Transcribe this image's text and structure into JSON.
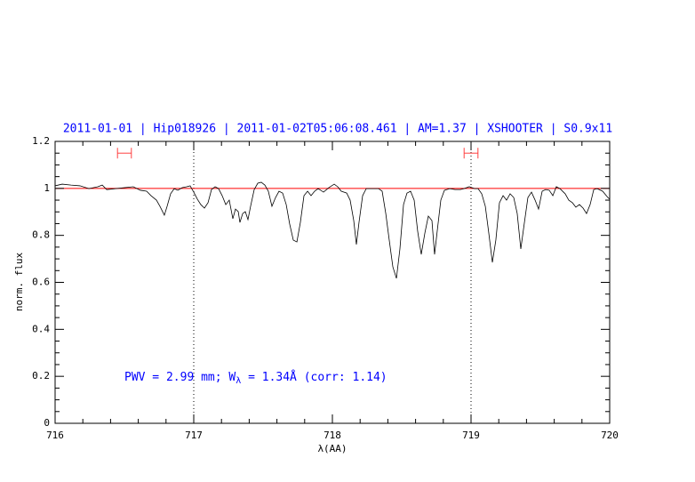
{
  "chart_data": {
    "type": "line",
    "title": "2011-01-01 | Hip018926 | 2011-01-02T05:06:08.461 | AM=1.37 | XSHOOTER | S0.9x11",
    "xlabel": "λ(AA)",
    "ylabel": "norm. flux",
    "annotation": {
      "prefix": "PWV = 2.99 mm; W",
      "subscript": "λ",
      "suffix": " = 1.34Å (corr: 1.14)"
    },
    "xlim": [
      716,
      720
    ],
    "ylim": [
      0,
      1.2
    ],
    "xticks": [
      716,
      717,
      718,
      719,
      720
    ],
    "yticks": [
      0,
      0.2,
      0.4,
      0.6,
      0.8,
      1,
      1.2
    ],
    "xminorticks": [
      716.2,
      716.4,
      716.6,
      716.8,
      717.2,
      717.4,
      717.6,
      717.8,
      718.2,
      718.4,
      718.6,
      718.8,
      719.2,
      719.4,
      719.6,
      719.8
    ],
    "yminorticks": [
      0.05,
      0.1,
      0.15,
      0.25,
      0.3,
      0.35,
      0.45,
      0.5,
      0.55,
      0.65,
      0.7,
      0.75,
      0.85,
      0.9,
      0.95,
      1.05,
      1.1,
      1.15
    ],
    "markers": [
      717,
      719
    ],
    "continuum": 1,
    "continuum_color": "#ff0000",
    "windows": [
      [
        716.45,
        716.55
      ],
      [
        718.95,
        719.05
      ]
    ],
    "window_level": 1.15,
    "window_color": "#ff4040",
    "x": [
      716.0,
      716.051,
      716.115,
      716.179,
      716.244,
      716.308,
      716.34,
      716.372,
      716.436,
      716.5,
      716.564,
      716.615,
      716.66,
      716.692,
      716.731,
      716.756,
      716.788,
      716.808,
      716.833,
      716.859,
      716.885,
      716.917,
      716.949,
      716.974,
      717.0,
      717.026,
      717.051,
      717.077,
      717.103,
      717.128,
      717.154,
      717.179,
      717.205,
      717.231,
      717.256,
      717.282,
      717.301,
      717.321,
      717.333,
      717.353,
      717.372,
      717.391,
      717.41,
      717.436,
      717.462,
      717.487,
      717.513,
      717.538,
      717.564,
      717.59,
      717.615,
      717.641,
      717.667,
      717.692,
      717.718,
      717.744,
      717.769,
      717.795,
      717.821,
      717.846,
      717.872,
      717.897,
      717.936,
      717.974,
      718.013,
      718.038,
      718.064,
      718.103,
      718.128,
      718.154,
      718.173,
      718.192,
      718.218,
      718.244,
      718.295,
      718.333,
      718.359,
      718.385,
      718.41,
      718.436,
      718.462,
      718.487,
      718.513,
      718.538,
      718.564,
      718.59,
      718.615,
      718.641,
      718.667,
      718.692,
      718.718,
      718.737,
      718.756,
      718.782,
      718.808,
      718.846,
      718.885,
      718.923,
      718.949,
      718.987,
      719.026,
      719.051,
      719.077,
      719.103,
      719.128,
      719.154,
      719.179,
      719.205,
      719.231,
      719.256,
      719.282,
      719.308,
      719.333,
      719.359,
      719.385,
      719.41,
      719.436,
      719.462,
      719.487,
      719.513,
      719.538,
      719.564,
      719.59,
      719.615,
      719.641,
      719.679,
      719.705,
      719.731,
      719.756,
      719.782,
      719.808,
      719.833,
      719.859,
      719.885,
      719.91,
      719.949,
      719.987,
      720.0
    ],
    "series": [
      {
        "color": "#000000",
        "values": [
          1.011,
          1.018,
          1.014,
          1.011,
          0.999,
          1.007,
          1.014,
          0.995,
          0.999,
          1.003,
          1.007,
          0.992,
          0.988,
          0.969,
          0.95,
          0.924,
          0.886,
          0.924,
          0.977,
          0.999,
          0.992,
          1.003,
          1.007,
          1.011,
          0.984,
          0.954,
          0.931,
          0.916,
          0.939,
          0.995,
          1.007,
          0.999,
          0.969,
          0.931,
          0.95,
          0.871,
          0.912,
          0.901,
          0.855,
          0.893,
          0.901,
          0.867,
          0.924,
          0.995,
          1.022,
          1.026,
          1.014,
          0.988,
          0.924,
          0.961,
          0.988,
          0.98,
          0.931,
          0.848,
          0.78,
          0.772,
          0.855,
          0.969,
          0.988,
          0.969,
          0.988,
          0.999,
          0.984,
          1.003,
          1.018,
          1.007,
          0.988,
          0.98,
          0.95,
          0.863,
          0.761,
          0.855,
          0.969,
          0.999,
          0.999,
          0.999,
          0.988,
          0.893,
          0.78,
          0.666,
          0.617,
          0.742,
          0.931,
          0.98,
          0.988,
          0.95,
          0.818,
          0.719,
          0.81,
          0.882,
          0.863,
          0.719,
          0.818,
          0.95,
          0.992,
          0.999,
          0.995,
          0.995,
          0.999,
          1.007,
          0.999,
          0.999,
          0.977,
          0.924,
          0.81,
          0.685,
          0.78,
          0.939,
          0.969,
          0.95,
          0.977,
          0.961,
          0.893,
          0.742,
          0.855,
          0.961,
          0.984,
          0.95,
          0.912,
          0.988,
          0.995,
          0.992,
          0.969,
          1.007,
          0.999,
          0.977,
          0.95,
          0.939,
          0.92,
          0.931,
          0.916,
          0.893,
          0.931,
          0.995,
          0.999,
          0.988,
          0.961,
          0.954
        ]
      }
    ],
    "title_color": "#0000ff"
  }
}
